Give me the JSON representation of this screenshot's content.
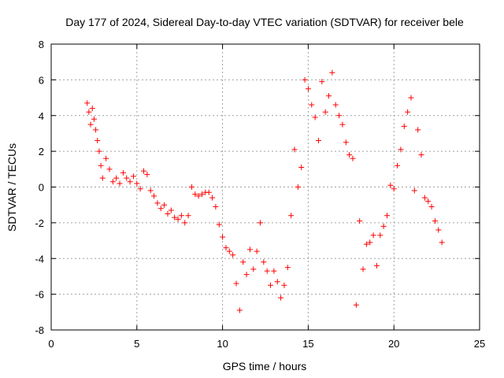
{
  "chart_data": {
    "type": "scatter",
    "title": "Day 177 of 2024, Sidereal Day-to-day VTEC variation (SDTVAR) for receiver bele",
    "xlabel": "GPS time / hours",
    "ylabel": "SDTVAR / TECUs",
    "xlim": [
      0,
      25
    ],
    "ylim": [
      -8,
      8
    ],
    "xticks": [
      0,
      5,
      10,
      15,
      20,
      25
    ],
    "yticks": [
      -8,
      -6,
      -4,
      -2,
      0,
      2,
      4,
      6,
      8
    ],
    "xtick_labels": [
      "0",
      "5",
      "10",
      "15",
      "20",
      "25"
    ],
    "ytick_labels": [
      "-8",
      "-6",
      "-4",
      "-2",
      "0",
      "2",
      "4",
      "6",
      "8"
    ],
    "grid": true,
    "marker": "+",
    "series": [
      {
        "name": "SDTVAR",
        "color": "#ff0000",
        "x": [
          2.1,
          2.2,
          2.3,
          2.4,
          2.5,
          2.6,
          2.7,
          2.8,
          2.9,
          3.0,
          3.2,
          3.4,
          3.6,
          3.8,
          4.0,
          4.2,
          4.4,
          4.6,
          4.8,
          5.0,
          5.2,
          5.4,
          5.6,
          5.8,
          6.0,
          6.2,
          6.4,
          6.6,
          6.8,
          7.0,
          7.2,
          7.4,
          7.6,
          7.8,
          8.0,
          8.2,
          8.4,
          8.6,
          8.8,
          9.0,
          9.2,
          9.4,
          9.6,
          9.8,
          10.0,
          10.2,
          10.4,
          10.6,
          10.8,
          11.0,
          11.2,
          11.4,
          11.6,
          11.8,
          12.0,
          12.2,
          12.4,
          12.6,
          12.8,
          13.0,
          13.2,
          13.4,
          13.6,
          13.8,
          14.0,
          14.2,
          14.4,
          14.6,
          14.8,
          15.0,
          15.2,
          15.4,
          15.6,
          15.8,
          16.0,
          16.2,
          16.4,
          16.6,
          16.8,
          17.0,
          17.2,
          17.4,
          17.6,
          17.8,
          18.0,
          18.2,
          18.4,
          18.6,
          18.8,
          19.0,
          19.2,
          19.4,
          19.6,
          19.8,
          20.0,
          20.2,
          20.4,
          20.6,
          20.8,
          21.0,
          21.2,
          21.4,
          21.6,
          21.8,
          22.0,
          22.2,
          22.4,
          22.6,
          22.8
        ],
        "y": [
          4.7,
          4.2,
          3.5,
          4.4,
          3.8,
          3.2,
          2.6,
          2.0,
          1.2,
          0.5,
          1.6,
          1.0,
          0.3,
          0.5,
          0.2,
          0.8,
          0.5,
          0.3,
          0.6,
          0.2,
          -0.1,
          0.9,
          0.7,
          -0.2,
          -0.5,
          -0.9,
          -1.2,
          -1.0,
          -1.5,
          -1.3,
          -1.7,
          -1.8,
          -1.6,
          -2.0,
          -1.6,
          0.0,
          -0.4,
          -0.5,
          -0.4,
          -0.3,
          -0.3,
          -0.6,
          -1.1,
          -2.1,
          -2.8,
          -3.4,
          -3.6,
          -3.8,
          -5.4,
          -6.9,
          -4.2,
          -4.9,
          -3.5,
          -4.6,
          -3.6,
          -2.0,
          -4.2,
          -4.7,
          -5.5,
          -4.7,
          -5.3,
          -6.2,
          -5.5,
          -4.5,
          -1.6,
          2.1,
          0.0,
          1.1,
          6.0,
          5.5,
          4.6,
          3.9,
          2.6,
          5.9,
          4.2,
          5.1,
          6.4,
          4.6,
          4.0,
          3.5,
          2.5,
          1.8,
          1.6,
          -6.6,
          -1.9,
          -4.6,
          -3.2,
          -3.1,
          -2.7,
          -4.4,
          -2.7,
          -2.2,
          -1.6,
          0.1,
          -0.1,
          1.2,
          2.1,
          3.4,
          4.2,
          5.0,
          -0.2,
          3.2,
          1.8,
          -0.6,
          -0.8,
          -1.1,
          -1.9,
          -2.4,
          -3.1
        ]
      }
    ]
  }
}
